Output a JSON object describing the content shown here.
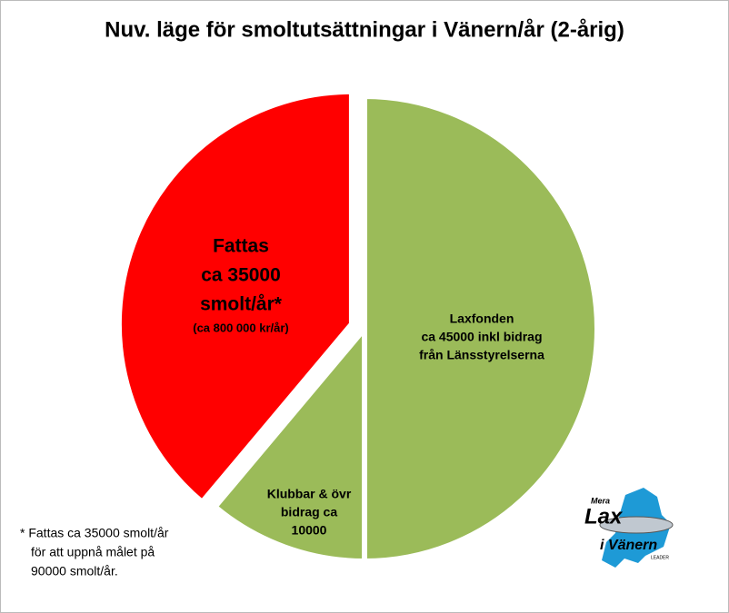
{
  "chart_data": {
    "type": "pie",
    "title": "Nuv. läge för smoltutsättningar  i Vänern/år (2-årig)",
    "categories": [
      [
        "Laxfonden",
        "ca 45000 inkl bidrag",
        "från Länsstyrelserna"
      ],
      [
        "Klubbar & övr",
        "bidrag ca",
        "10000"
      ],
      [
        "Fattas",
        "ca 35000",
        "smolt/år*",
        "(ca 800 000 kr/år)"
      ]
    ],
    "values": [
      45000,
      10000,
      35000
    ],
    "colors": [
      "#9bbb59",
      "#9bbb59",
      "#ff0000"
    ],
    "note": [
      "* Fattas ca 35000 smolt/år",
      "för att uppnå målet på",
      "90000 smolt/år."
    ],
    "logo": [
      "Mera",
      "Lax",
      "i Vänern",
      "LEADER"
    ]
  }
}
